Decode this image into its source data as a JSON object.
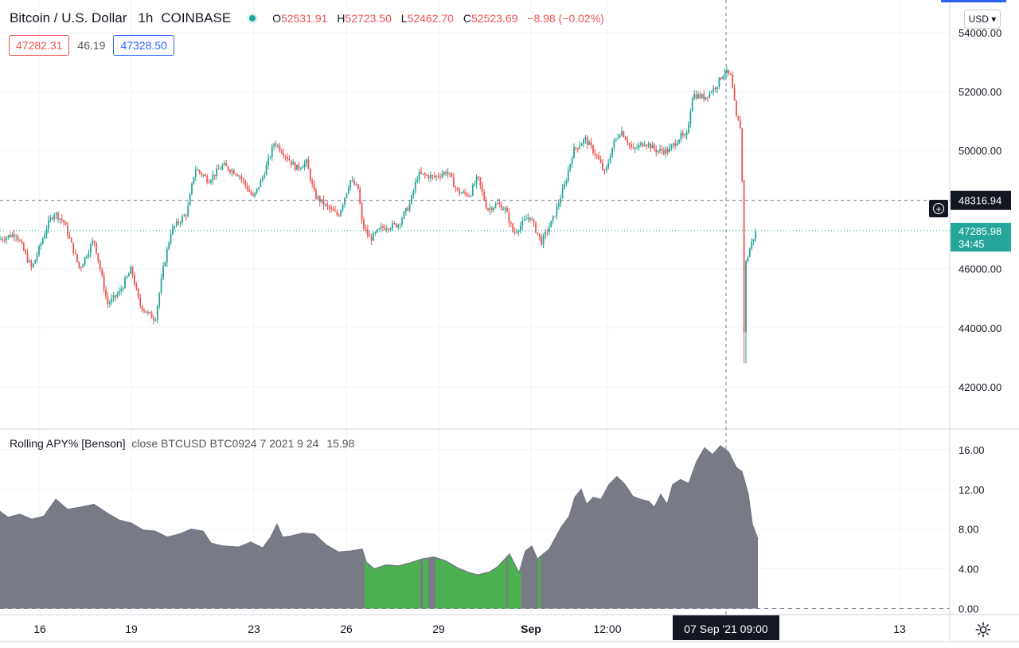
{
  "header": {
    "symbol": "Bitcoin / U.S. Dollar",
    "interval": "1h",
    "exchange": "COINBASE",
    "open_label": "O",
    "open": "52531.91",
    "high_label": "H",
    "high": "52723.50",
    "low_label": "L",
    "low": "52462.70",
    "close_label": "C",
    "close": "52523.69",
    "change": "−8.98 (−0.02%)"
  },
  "quotes": {
    "bid": "47282.31",
    "spread": "46.19",
    "ask": "47328.50"
  },
  "currency_button": "USD ▾",
  "indicator": {
    "name": "Rolling APY% [Benson]",
    "params": "close BTCUSD BTC0924 7 2021 9 24",
    "value": "15.98"
  },
  "crosshair": {
    "price_label": "48316.94",
    "time_label": "07 Sep '21   09:00"
  },
  "last_price": {
    "price": "47285.98",
    "countdown": "34:45"
  },
  "colors": {
    "up": "#26a69a",
    "down": "#ef5350",
    "apy_fill": "#787b86",
    "apy_green": "#4caf50",
    "crosshair_label_bg": "#131722",
    "last_price_bg": "#26a69a"
  },
  "icons": [
    "plus-circle-icon",
    "gear-icon",
    "status-dot-icon"
  ],
  "chart_data": [
    {
      "type": "candlestick",
      "title": "Bitcoin / U.S. Dollar 1h COINBASE",
      "y_ticks": [
        "54000.00",
        "52000.00",
        "50000.00",
        "46000.00",
        "44000.00",
        "42000.00"
      ],
      "ylim": [
        40600,
        55100
      ],
      "x_ticks": [
        "16",
        "19",
        "23",
        "26",
        "29",
        "Sep",
        "12:00",
        "13"
      ],
      "grid": true,
      "price_path": [
        [
          0,
          47000
        ],
        [
          20,
          47200
        ],
        [
          40,
          46000
        ],
        [
          60,
          47500
        ],
        [
          68,
          47900
        ],
        [
          80,
          47600
        ],
        [
          90,
          46800
        ],
        [
          100,
          46000
        ],
        [
          118,
          47000
        ],
        [
          135,
          44800
        ],
        [
          150,
          45200
        ],
        [
          165,
          46000
        ],
        [
          175,
          44800
        ],
        [
          185,
          44500
        ],
        [
          195,
          44300
        ],
        [
          205,
          46000
        ],
        [
          215,
          47300
        ],
        [
          235,
          47900
        ],
        [
          245,
          49400
        ],
        [
          262,
          49000
        ],
        [
          280,
          49500
        ],
        [
          300,
          49200
        ],
        [
          318,
          48400
        ],
        [
          330,
          49100
        ],
        [
          345,
          50300
        ],
        [
          360,
          49800
        ],
        [
          372,
          49400
        ],
        [
          385,
          49600
        ],
        [
          395,
          48500
        ],
        [
          410,
          48100
        ],
        [
          425,
          47800
        ],
        [
          440,
          49000
        ],
        [
          450,
          48700
        ],
        [
          455,
          47500
        ],
        [
          465,
          47000
        ],
        [
          480,
          47400
        ],
        [
          500,
          47500
        ],
        [
          515,
          48200
        ],
        [
          525,
          49200
        ],
        [
          545,
          49100
        ],
        [
          562,
          49300
        ],
        [
          575,
          48600
        ],
        [
          590,
          48500
        ],
        [
          600,
          49100
        ],
        [
          612,
          48000
        ],
        [
          625,
          48200
        ],
        [
          635,
          48000
        ],
        [
          645,
          47200
        ],
        [
          655,
          47500
        ],
        [
          665,
          47800
        ],
        [
          680,
          46900
        ],
        [
          695,
          47700
        ],
        [
          710,
          48900
        ],
        [
          720,
          50000
        ],
        [
          735,
          50400
        ],
        [
          750,
          49800
        ],
        [
          760,
          49200
        ],
        [
          770,
          50200
        ],
        [
          780,
          50700
        ],
        [
          795,
          50000
        ],
        [
          810,
          50300
        ],
        [
          825,
          50000
        ],
        [
          840,
          50000
        ],
        [
          855,
          50500
        ],
        [
          862,
          50400
        ],
        [
          870,
          51900
        ],
        [
          885,
          51800
        ],
        [
          900,
          52200
        ],
        [
          910,
          52700
        ],
        [
          918,
          52500
        ],
        [
          925,
          51100
        ],
        [
          930,
          50800
        ],
        [
          933,
          48300
        ],
        [
          935,
          42800
        ],
        [
          937,
          46200
        ],
        [
          943,
          46800
        ],
        [
          950,
          47300
        ]
      ]
    },
    {
      "type": "area",
      "title": "Rolling APY% [Benson]",
      "y_ticks": [
        "16.00",
        "12.00",
        "8.00",
        "4.00",
        "0.00"
      ],
      "ylim": [
        -0.6,
        18
      ],
      "x_ticks": [
        "16",
        "19",
        "23",
        "26",
        "29",
        "Sep",
        "12:00",
        "13"
      ],
      "values": [
        [
          0,
          9.8
        ],
        [
          10,
          9.2
        ],
        [
          25,
          9.5
        ],
        [
          40,
          9.0
        ],
        [
          55,
          9.3
        ],
        [
          70,
          11.0
        ],
        [
          85,
          10.0
        ],
        [
          100,
          10.2
        ],
        [
          118,
          10.5
        ],
        [
          135,
          9.6
        ],
        [
          150,
          8.9
        ],
        [
          165,
          8.6
        ],
        [
          180,
          7.9
        ],
        [
          195,
          7.8
        ],
        [
          210,
          7.2
        ],
        [
          225,
          7.5
        ],
        [
          240,
          8.0
        ],
        [
          255,
          7.8
        ],
        [
          265,
          6.6
        ],
        [
          280,
          6.3
        ],
        [
          300,
          6.2
        ],
        [
          315,
          6.7
        ],
        [
          330,
          6.1
        ],
        [
          340,
          7.2
        ],
        [
          348,
          8.5
        ],
        [
          355,
          7.2
        ],
        [
          365,
          7.3
        ],
        [
          380,
          7.6
        ],
        [
          395,
          7.5
        ],
        [
          410,
          6.4
        ],
        [
          425,
          5.7
        ],
        [
          440,
          5.8
        ],
        [
          455,
          6.0
        ],
        [
          460,
          4.7
        ],
        [
          470,
          4.0
        ],
        [
          485,
          4.4
        ],
        [
          500,
          4.3
        ],
        [
          515,
          4.6
        ],
        [
          530,
          5.0
        ],
        [
          545,
          5.2
        ],
        [
          560,
          4.8
        ],
        [
          575,
          4.1
        ],
        [
          590,
          3.6
        ],
        [
          600,
          3.4
        ],
        [
          615,
          3.7
        ],
        [
          625,
          4.2
        ],
        [
          640,
          5.5
        ],
        [
          652,
          3.6
        ],
        [
          660,
          5.8
        ],
        [
          668,
          6.3
        ],
        [
          675,
          5.0
        ],
        [
          690,
          6.0
        ],
        [
          705,
          8.2
        ],
        [
          715,
          9.3
        ],
        [
          722,
          11.2
        ],
        [
          730,
          12.0
        ],
        [
          737,
          10.5
        ],
        [
          745,
          11.2
        ],
        [
          755,
          11.0
        ],
        [
          765,
          12.5
        ],
        [
          775,
          13.3
        ],
        [
          785,
          12.5
        ],
        [
          795,
          11.3
        ],
        [
          805,
          11.0
        ],
        [
          815,
          10.8
        ],
        [
          822,
          10.2
        ],
        [
          830,
          11.5
        ],
        [
          838,
          10.5
        ],
        [
          845,
          12.5
        ],
        [
          855,
          13.0
        ],
        [
          865,
          12.6
        ],
        [
          875,
          14.8
        ],
        [
          885,
          16.2
        ],
        [
          895,
          15.5
        ],
        [
          905,
          16.4
        ],
        [
          915,
          15.8
        ],
        [
          925,
          14.2
        ],
        [
          932,
          13.8
        ],
        [
          940,
          11.5
        ],
        [
          945,
          8.5
        ],
        [
          952,
          7.0
        ]
      ],
      "highlight_ranges": [
        [
          458,
          528
        ],
        [
          531,
          538
        ],
        [
          547,
          636
        ],
        [
          638,
          655
        ],
        [
          676,
          679
        ]
      ]
    }
  ]
}
